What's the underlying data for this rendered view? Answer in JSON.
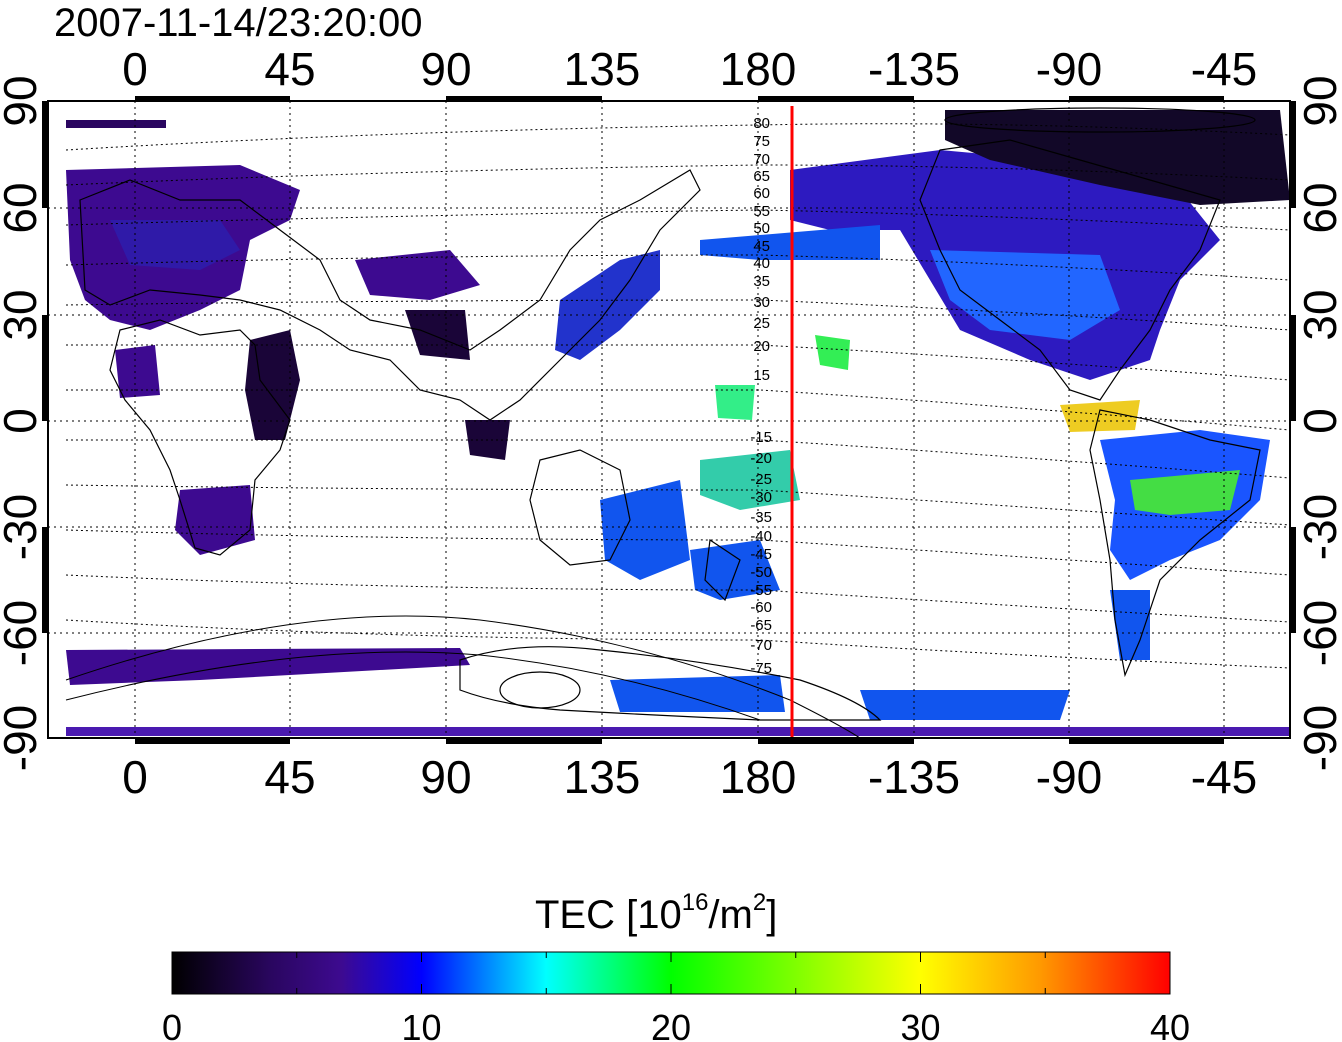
{
  "title": "2007-11-14/23:20:00",
  "lon_ticks": [
    "0",
    "45",
    "90",
    "135",
    "180",
    "-135",
    "-90",
    "-45"
  ],
  "lat_ticks": [
    "90",
    "60",
    "30",
    "0",
    "-30",
    "-60",
    "-90"
  ],
  "maglat_north_labels": [
    "80",
    "75",
    "70",
    "65",
    "60",
    "55",
    "50",
    "45",
    "40",
    "35",
    "30",
    "25",
    "20",
    "15"
  ],
  "maglat_south_labels": [
    "-15",
    "-20",
    "-25",
    "-30",
    "-35",
    "-40",
    "-45",
    "-50",
    "-55",
    "-60",
    "-65",
    "-70",
    "-75"
  ],
  "colorbar": {
    "label": "TEC  [10",
    "label_exp": "16",
    "label_unit": "/m",
    "label_unit_exp": "2",
    "label_end": "]",
    "ticks": [
      "0",
      "10",
      "20",
      "30",
      "40"
    ],
    "min": 0,
    "max": 40
  },
  "marker_line": {
    "longitude": -172,
    "color": "#ff0000"
  },
  "colors": {
    "c0": "#000000",
    "c5": "#3d0a78",
    "c10": "#0000ff",
    "c15": "#00ffff",
    "c20": "#00ff00",
    "c30": "#ffff00",
    "c35": "#ffa500",
    "c40": "#ff0000"
  },
  "tec_patches": [
    {
      "region": "europe",
      "tec": 5
    },
    {
      "region": "north-america",
      "tec": 7
    },
    {
      "region": "arctic-canada",
      "tec": 3
    },
    {
      "region": "africa-east",
      "tec": 1
    },
    {
      "region": "southern-africa",
      "tec": 5
    },
    {
      "region": "japan",
      "tec": 9
    },
    {
      "region": "australia-east",
      "tec": 11
    },
    {
      "region": "new-zealand",
      "tec": 11
    },
    {
      "region": "pacific-south",
      "tec": 19
    },
    {
      "region": "south-america",
      "tec": 12
    },
    {
      "region": "brazil-coast",
      "tec": 22
    },
    {
      "region": "caribbean",
      "tec": 30
    },
    {
      "region": "antarctica-ross",
      "tec": 9
    }
  ]
}
